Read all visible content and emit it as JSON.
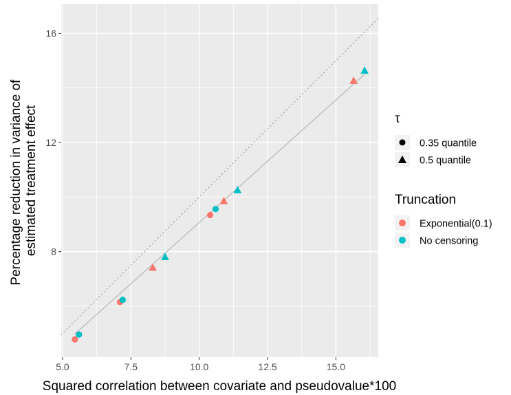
{
  "chart_data": {
    "type": "scatter",
    "xlabel": "Squared correlation between covariate and pseudovalue*100",
    "ylabel_lines": [
      "Percentage reduction in variance of",
      "estimated treatment effect"
    ],
    "x_ticks": [
      5.0,
      7.5,
      10.0,
      12.5,
      15.0
    ],
    "x_tick_labels": [
      "5.0",
      "7.5",
      "10.0",
      "12.5",
      "15.0"
    ],
    "y_ticks": [
      8,
      12,
      16
    ],
    "y_tick_labels": [
      "8",
      "12",
      "16"
    ],
    "xlim": [
      4.95,
      16.55
    ],
    "ylim": [
      4.13,
      17.07
    ],
    "grid": true,
    "legend_placement": "right",
    "shape_legend": {
      "title": "τ",
      "entries": [
        {
          "label": "0.35 quantile",
          "shape": "circle"
        },
        {
          "label": "0.5 quantile",
          "shape": "triangle"
        }
      ]
    },
    "color_legend": {
      "title": "Truncation",
      "entries": [
        {
          "label": "Exponential(0.1)",
          "color": "#F8766D"
        },
        {
          "label": "No censoring",
          "color": "#00BFC4"
        }
      ]
    },
    "points": [
      {
        "x": 5.45,
        "y": 4.78,
        "shape": "circle",
        "group": "Exponential(0.1)"
      },
      {
        "x": 5.6,
        "y": 4.96,
        "shape": "circle",
        "group": "No censoring"
      },
      {
        "x": 7.1,
        "y": 6.15,
        "shape": "circle",
        "group": "Exponential(0.1)"
      },
      {
        "x": 7.2,
        "y": 6.23,
        "shape": "circle",
        "group": "No censoring"
      },
      {
        "x": 8.3,
        "y": 7.41,
        "shape": "triangle",
        "group": "Exponential(0.1)"
      },
      {
        "x": 8.75,
        "y": 7.8,
        "shape": "triangle",
        "group": "No censoring"
      },
      {
        "x": 10.4,
        "y": 9.34,
        "shape": "circle",
        "group": "Exponential(0.1)"
      },
      {
        "x": 10.6,
        "y": 9.56,
        "shape": "circle",
        "group": "No censoring"
      },
      {
        "x": 10.9,
        "y": 9.85,
        "shape": "triangle",
        "group": "Exponential(0.1)"
      },
      {
        "x": 11.4,
        "y": 10.25,
        "shape": "triangle",
        "group": "No censoring"
      },
      {
        "x": 15.65,
        "y": 14.26,
        "shape": "triangle",
        "group": "Exponential(0.1)"
      },
      {
        "x": 16.05,
        "y": 14.63,
        "shape": "triangle",
        "group": "No censoring"
      }
    ],
    "fit_line": {
      "x": [
        5.45,
        16.05
      ],
      "y": [
        4.98,
        14.5
      ],
      "color": "#bdbdbd"
    },
    "reference_line": {
      "x": [
        4.95,
        16.55
      ],
      "y": [
        4.95,
        16.55
      ],
      "style": "dotted",
      "color": "#a9a9a9"
    }
  }
}
